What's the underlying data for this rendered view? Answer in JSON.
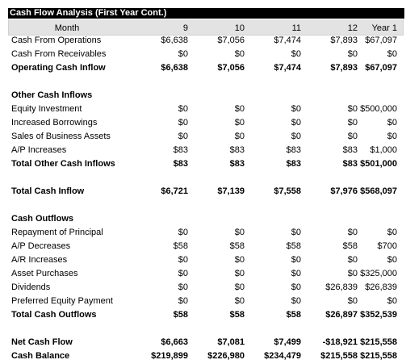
{
  "title": "Cash Flow Analysis (First Year Cont.)",
  "header": {
    "label": "Month",
    "cols": [
      "9",
      "10",
      "11",
      "12",
      "Year 1"
    ]
  },
  "rows": [
    {
      "label": "Cash From Operations",
      "values": [
        "$6,638",
        "$7,056",
        "$7,474",
        "$7,893",
        "$67,097"
      ],
      "bold": false
    },
    {
      "label": "Cash From Receivables",
      "values": [
        "$0",
        "$0",
        "$0",
        "$0",
        "$0"
      ],
      "bold": false
    },
    {
      "label": "Operating Cash Inflow",
      "values": [
        "$6,638",
        "$7,056",
        "$7,474",
        "$7,893",
        "$67,097"
      ],
      "bold": true
    },
    {
      "label": "Other Cash Inflows",
      "values": [],
      "bold": true
    },
    {
      "label": "Equity Investment",
      "values": [
        "$0",
        "$0",
        "$0",
        "$0",
        "$500,000"
      ],
      "bold": false
    },
    {
      "label": "Increased Borrowings",
      "values": [
        "$0",
        "$0",
        "$0",
        "$0",
        "$0"
      ],
      "bold": false
    },
    {
      "label": "Sales of Business Assets",
      "values": [
        "$0",
        "$0",
        "$0",
        "$0",
        "$0"
      ],
      "bold": false
    },
    {
      "label": "A/P Increases",
      "values": [
        "$83",
        "$83",
        "$83",
        "$83",
        "$1,000"
      ],
      "bold": false
    },
    {
      "label": "Total Other Cash Inflows",
      "values": [
        "$83",
        "$83",
        "$83",
        "$83",
        "$501,000"
      ],
      "bold": true
    },
    {
      "label": "Total Cash Inflow",
      "values": [
        "$6,721",
        "$7,139",
        "$7,558",
        "$7,976",
        "$568,097"
      ],
      "bold": true
    },
    {
      "label": "Cash Outflows",
      "values": [],
      "bold": true
    },
    {
      "label": "Repayment of Principal",
      "values": [
        "$0",
        "$0",
        "$0",
        "$0",
        "$0"
      ],
      "bold": false
    },
    {
      "label": "A/P Decreases",
      "values": [
        "$58",
        "$58",
        "$58",
        "$58",
        "$700"
      ],
      "bold": false
    },
    {
      "label": "A/R Increases",
      "values": [
        "$0",
        "$0",
        "$0",
        "$0",
        "$0"
      ],
      "bold": false
    },
    {
      "label": "Asset Purchases",
      "values": [
        "$0",
        "$0",
        "$0",
        "$0",
        "$325,000"
      ],
      "bold": false
    },
    {
      "label": "Dividends",
      "values": [
        "$0",
        "$0",
        "$0",
        "$26,839",
        "$26,839"
      ],
      "bold": false
    },
    {
      "label": "Preferred Equity Payment",
      "values": [
        "$0",
        "$0",
        "$0",
        "$0",
        "$0"
      ],
      "bold": false
    },
    {
      "label": "Total Cash Outflows",
      "values": [
        "$58",
        "$58",
        "$58",
        "$26,897",
        "$352,539"
      ],
      "bold": true
    },
    {
      "label": "Net Cash Flow",
      "values": [
        "$6,663",
        "$7,081",
        "$7,499",
        "-$18,921",
        "$215,558"
      ],
      "bold": true
    },
    {
      "label": "Cash Balance",
      "values": [
        "$219,899",
        "$226,980",
        "$234,479",
        "$215,558",
        "$215,558"
      ],
      "bold": true
    }
  ]
}
